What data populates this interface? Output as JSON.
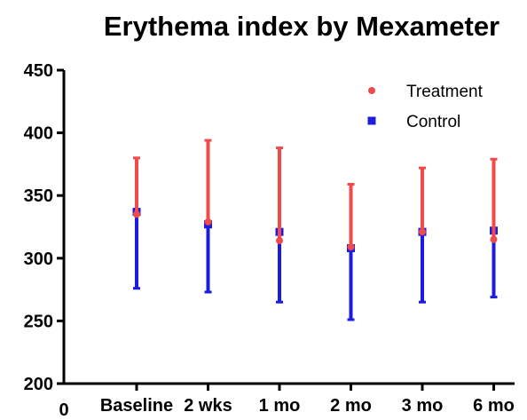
{
  "chart_data": {
    "type": "scatter",
    "title": "Erythema index by Mexameter",
    "xlabel": "",
    "ylabel": "",
    "categories": [
      "Baseline",
      "2 wks",
      "1 mo",
      "2 mo",
      "3 mo",
      "6 mo"
    ],
    "x_origin_label": "0",
    "ylim": [
      200,
      450
    ],
    "yticks": [
      200,
      250,
      300,
      350,
      400,
      450
    ],
    "grid": false,
    "legend_position": "top-right",
    "series": [
      {
        "name": "Treatment",
        "marker": "circle",
        "color": "#f04a4a",
        "error_direction": "up",
        "values": [
          335,
          329,
          314,
          309,
          321,
          315
        ],
        "error_upper": [
          380,
          394,
          388,
          359,
          372,
          379
        ]
      },
      {
        "name": "Control",
        "marker": "square",
        "color": "#1c1ce0",
        "error_direction": "down",
        "values": [
          337,
          327,
          321,
          308,
          321,
          322
        ],
        "error_lower": [
          276,
          273,
          265,
          251,
          265,
          269
        ]
      }
    ]
  }
}
